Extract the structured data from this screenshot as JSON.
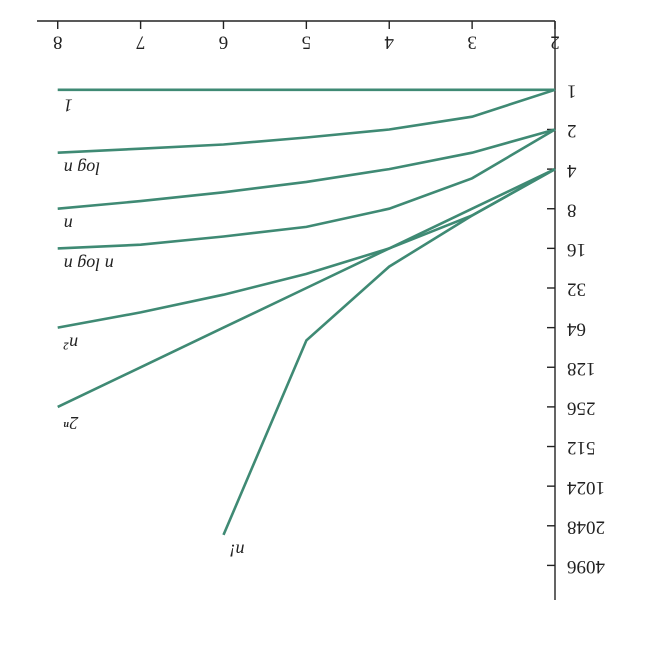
{
  "chart_data": {
    "type": "line",
    "x": [
      2,
      3,
      4,
      5,
      6,
      7,
      8
    ],
    "xlim": [
      2,
      8.25
    ],
    "xticks": [
      2,
      3,
      4,
      5,
      6,
      7,
      8
    ],
    "ylim": [
      0.3,
      7500
    ],
    "yticks": [
      1,
      2,
      4,
      8,
      16,
      32,
      64,
      128,
      256,
      512,
      1024,
      2048,
      4096
    ],
    "log_y": true,
    "log_base": 2,
    "rotated": 180,
    "series": [
      {
        "name": "1",
        "color": "#3f8a74",
        "values": [
          1,
          1,
          1,
          1,
          1,
          1,
          1
        ]
      },
      {
        "name": "log n",
        "color": "#3f8a74",
        "values": [
          1,
          1.6,
          2,
          2.3,
          2.6,
          2.8,
          3
        ]
      },
      {
        "name": "n",
        "color": "#3f8a74",
        "values": [
          2,
          3,
          4,
          5,
          6,
          7,
          8
        ]
      },
      {
        "name": "n log n",
        "color": "#3f8a74",
        "values": [
          2,
          4.7,
          8,
          11,
          13,
          15,
          16
        ]
      },
      {
        "name": "n²",
        "color": "#3f8a74",
        "values": [
          4,
          9,
          16,
          25,
          36,
          49,
          64
        ]
      },
      {
        "name": "2ⁿ",
        "color": "#3f8a74",
        "values": [
          4,
          8,
          16,
          32,
          64,
          128,
          256
        ]
      },
      {
        "name": "n!",
        "color": "#3f8a74",
        "values": [
          4,
          9,
          22,
          80,
          2400,
          null,
          null
        ]
      }
    ]
  }
}
